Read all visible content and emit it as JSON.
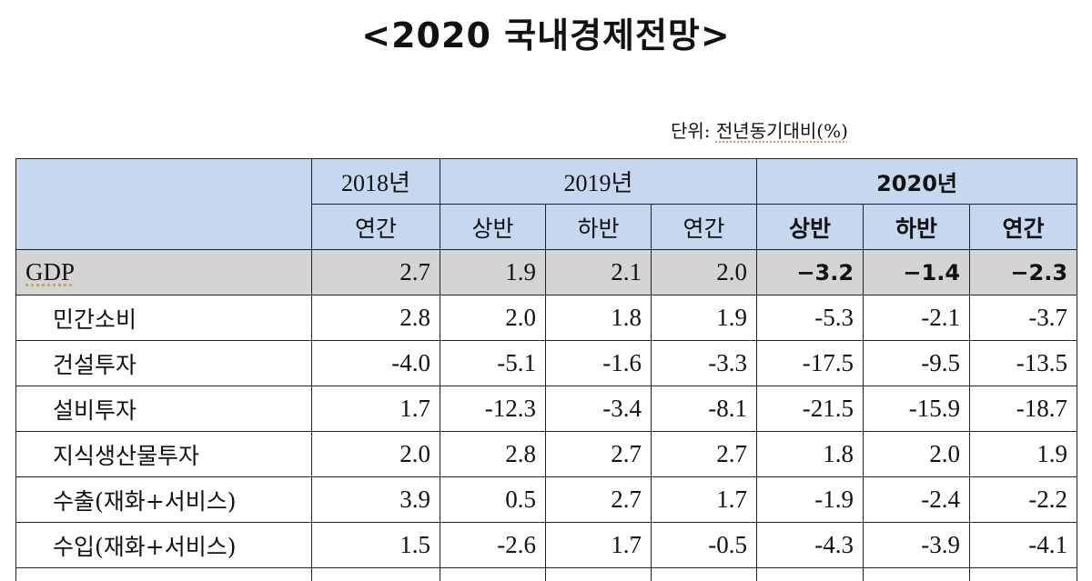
{
  "title": "<2020 국내경제전망>",
  "unit_prefix": "단위:",
  "unit_text": "전년동기대비(%)",
  "header": {
    "years": [
      "2018년",
      "2019년",
      "2020년"
    ],
    "periods": [
      "연간",
      "상반",
      "하반",
      "연간",
      "상반",
      "하반",
      "연간"
    ]
  },
  "rows": [
    {
      "label": "GDP",
      "values": [
        "2.7",
        "1.9",
        "2.1",
        "2.0",
        "−3.2",
        "−1.4",
        "−2.3"
      ]
    },
    {
      "label": "민간소비",
      "values": [
        "2.8",
        "2.0",
        "1.8",
        "1.9",
        "-5.3",
        "-2.1",
        "-3.7"
      ]
    },
    {
      "label": "건설투자",
      "values": [
        "-4.0",
        "-5.1",
        "-1.6",
        "-3.3",
        "-17.5",
        "-9.5",
        "-13.5"
      ]
    },
    {
      "label": "설비투자",
      "values": [
        "1.7",
        "-12.3",
        "-3.4",
        "-8.1",
        "-21.5",
        "-15.9",
        "-18.7"
      ]
    },
    {
      "label": "지식생산물투자",
      "values": [
        "2.0",
        "2.8",
        "2.7",
        "2.7",
        "1.8",
        "2.0",
        "1.9"
      ]
    },
    {
      "label": "수출(재화+서비스)",
      "values": [
        "3.9",
        "0.5",
        "2.7",
        "1.7",
        "-1.9",
        "-2.4",
        "-2.2"
      ]
    },
    {
      "label": "수입(재화+서비스)",
      "values": [
        "1.5",
        "-2.6",
        "1.7",
        "-0.5",
        "-4.3",
        "-3.9",
        "-4.1"
      ]
    }
  ],
  "colors": {
    "header_bg": "#c5d8f0",
    "gdp_row_bg": "#d4d4d4"
  }
}
